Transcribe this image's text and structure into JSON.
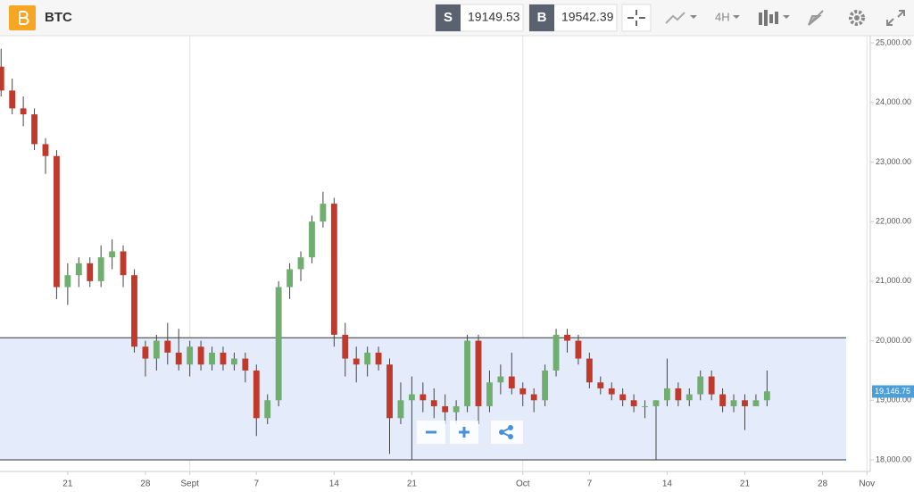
{
  "header": {
    "symbol": "BTC",
    "sell": {
      "label": "S",
      "price": 19149.53
    },
    "buy": {
      "label": "B",
      "price": 19542.39
    },
    "interval": "4H"
  },
  "chart_data": {
    "type": "candlestick",
    "x": [
      15,
      16,
      17,
      18,
      19,
      20,
      21,
      22,
      23,
      24,
      25,
      26,
      27,
      28,
      29,
      30,
      31,
      32,
      33,
      34,
      35,
      36,
      37,
      38,
      39,
      40,
      41,
      42,
      43,
      44,
      45,
      46,
      47,
      48,
      49,
      50,
      51,
      52,
      53,
      54,
      55,
      56,
      57,
      58,
      59,
      60,
      61,
      62,
      63,
      64,
      65,
      66,
      67,
      68,
      69,
      70,
      71,
      72,
      73,
      74,
      75,
      76,
      77,
      78,
      79,
      80,
      81,
      82,
      83,
      84
    ],
    "open": [
      24600,
      24200,
      23900,
      23800,
      23300,
      23100,
      20900,
      21100,
      21300,
      21000,
      21400,
      21500,
      21100,
      19900,
      19700,
      20000,
      19800,
      19600,
      19900,
      19600,
      19800,
      19600,
      19700,
      19500,
      18700,
      19000,
      20900,
      21200,
      21400,
      22000,
      22300,
      20100,
      19700,
      19600,
      19800,
      19600,
      18700,
      19000,
      19100,
      19000,
      18900,
      18800,
      18900,
      20000,
      18900,
      19300,
      19400,
      19200,
      19100,
      19000,
      19500,
      20100,
      20000,
      19700,
      19300,
      19200,
      19100,
      19000,
      18900,
      18900,
      19000,
      19200,
      19000,
      19100,
      19400,
      19100,
      18900,
      19000,
      18900,
      19000
    ],
    "high": [
      24900,
      24400,
      24100,
      23900,
      23400,
      23200,
      21300,
      21400,
      21400,
      21600,
      21700,
      21600,
      21200,
      20000,
      20100,
      20300,
      20200,
      20000,
      20000,
      19900,
      19900,
      19800,
      19800,
      19600,
      19100,
      21000,
      21300,
      21500,
      22100,
      22500,
      22400,
      20300,
      19900,
      19900,
      19900,
      19700,
      19300,
      19400,
      19300,
      19200,
      19100,
      19000,
      20100,
      20100,
      19500,
      19600,
      19800,
      19300,
      19200,
      19600,
      20200,
      20200,
      20100,
      19800,
      19400,
      19300,
      19200,
      19100,
      19000,
      19000,
      19700,
      19300,
      19200,
      19500,
      19500,
      19200,
      19100,
      19100,
      19100,
      19500
    ],
    "low": [
      24100,
      23800,
      23600,
      23200,
      22800,
      20700,
      20600,
      20900,
      20900,
      20900,
      21200,
      20900,
      19800,
      19400,
      19500,
      19600,
      19500,
      19400,
      19500,
      19500,
      19500,
      19500,
      19300,
      18400,
      18600,
      18900,
      20700,
      21000,
      21300,
      21900,
      19900,
      19400,
      19300,
      19400,
      19500,
      18100,
      18600,
      18000,
      18800,
      18700,
      18600,
      18600,
      18800,
      18600,
      18800,
      19100,
      19100,
      18900,
      18800,
      18900,
      19400,
      19800,
      19600,
      19200,
      19100,
      19000,
      18900,
      18800,
      18700,
      18000,
      18900,
      18900,
      18900,
      19000,
      19000,
      18800,
      18800,
      18500,
      18900,
      18900
    ],
    "close": [
      24200,
      23900,
      23800,
      23300,
      23100,
      20900,
      21100,
      21300,
      21000,
      21400,
      21500,
      21100,
      19900,
      19700,
      20000,
      19800,
      19600,
      19900,
      19600,
      19800,
      19600,
      19700,
      19500,
      18700,
      19000,
      20900,
      21200,
      21400,
      22000,
      22300,
      20100,
      19700,
      19600,
      19800,
      19600,
      18700,
      19000,
      19100,
      19000,
      18900,
      18800,
      18900,
      20000,
      18900,
      19300,
      19400,
      19200,
      19100,
      19000,
      19500,
      20100,
      20000,
      19700,
      19300,
      19200,
      19100,
      19000,
      18900,
      18900,
      19000,
      19200,
      19000,
      19100,
      19400,
      19100,
      18900,
      19000,
      18900,
      19000,
      19150
    ],
    "up_color": "#6fae6f",
    "down_color": "#c0392b",
    "zone": {
      "low": 18000,
      "high": 20050,
      "color": "#e4ecfb"
    },
    "last_price": {
      "value": 19146.75,
      "label": "19,146.75"
    },
    "xlim": [
      14.9,
      93.3
    ],
    "ylim": [
      17805,
      25120
    ],
    "xticks": [
      21,
      28,
      {
        "value": 32,
        "label": "Sept"
      },
      {
        "value": 38,
        "label": "7"
      },
      {
        "value": 45,
        "label": "14"
      },
      {
        "value": 52,
        "label": "21"
      },
      {
        "value": 62,
        "label": "Oct"
      },
      {
        "value": 68,
        "label": "7"
      },
      {
        "value": 75,
        "label": "14"
      },
      {
        "value": 82,
        "label": "21"
      },
      {
        "value": 89,
        "label": "28"
      },
      {
        "value": 93,
        "label": "Nov"
      }
    ],
    "yticks": [
      {
        "value": 18000,
        "label": "18,000.00"
      },
      {
        "value": 19000,
        "label": "19,000.00"
      },
      {
        "value": 20000,
        "label": "20,000.00"
      },
      {
        "value": 21000,
        "label": "21,000.00"
      },
      {
        "value": 22000,
        "label": "22,000.00"
      },
      {
        "value": 23000,
        "label": "23,000.00"
      },
      {
        "value": 24000,
        "label": "24,000.00"
      },
      {
        "value": 25000,
        "label": "25,000.00"
      }
    ]
  }
}
